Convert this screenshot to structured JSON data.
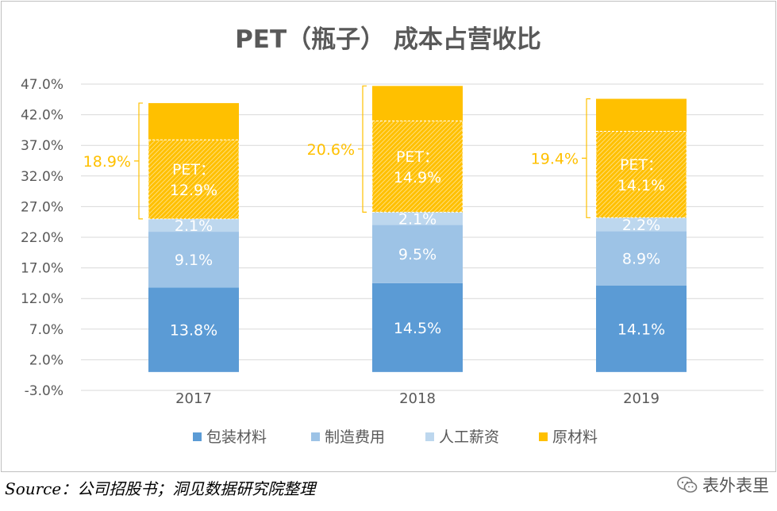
{
  "chart_data": {
    "type": "bar",
    "stacked": true,
    "title": "PET（瓶子） 成本占营收比",
    "categories": [
      "2017",
      "2018",
      "2019"
    ],
    "ylim": [
      -3.0,
      47.0
    ],
    "ytick_step": 5,
    "ytick_format": "percent_1dp",
    "ytick_labels": [
      "47.0%",
      "42.0%",
      "37.0%",
      "32.0%",
      "27.0%",
      "22.0%",
      "17.0%",
      "12.0%",
      "7.0%",
      "2.0%",
      "-3.0%"
    ],
    "grid": true,
    "legend_position": "bottom",
    "series": [
      {
        "name": "包装材料",
        "color": "#5b9bd5",
        "values": [
          13.8,
          14.5,
          14.1
        ],
        "labels": [
          "13.8%",
          "14.5%",
          "14.1%"
        ]
      },
      {
        "name": "制造费用",
        "color": "#9dc3e6",
        "values": [
          9.1,
          9.5,
          8.9
        ],
        "labels": [
          "9.1%",
          "9.5%",
          "8.9%"
        ]
      },
      {
        "name": "人工薪资",
        "color": "#bdd7ee",
        "values": [
          2.1,
          2.1,
          2.2
        ],
        "labels": [
          "2.1%",
          "2.1%",
          "2.2%"
        ]
      },
      {
        "name": "原材料",
        "color": "#ffc000",
        "values": [
          18.9,
          20.6,
          19.4
        ],
        "labels": [
          "18.9%",
          "20.6%",
          "19.4%"
        ]
      }
    ],
    "pet_highlight": {
      "prefix": "PET：",
      "values": [
        12.9,
        14.9,
        14.1
      ],
      "labels": [
        "12.9%",
        "14.9%",
        "14.1%"
      ],
      "color": "#ffc000"
    }
  },
  "source_text": "Source：公司招股书；洞见数据研究院整理",
  "watermark": {
    "text": "表外表里",
    "icon": "wechat-icon"
  }
}
